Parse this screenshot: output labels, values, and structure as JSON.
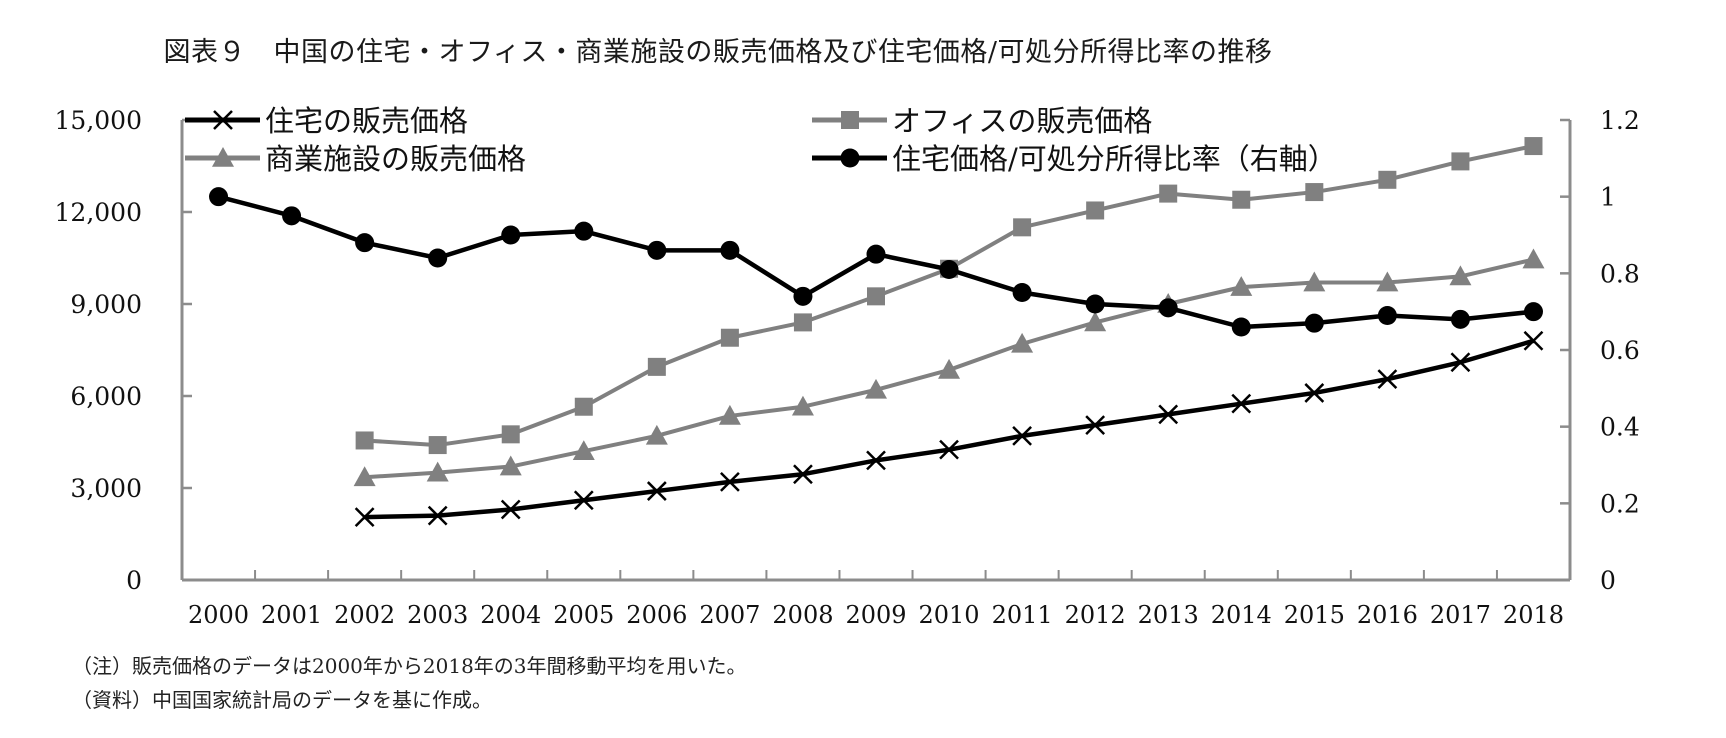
{
  "title": "図表９　中国の住宅・オフィス・商業施設の販売価格及び住宅価格/可処分所得比率の推移",
  "notes": {
    "note": "（注）販売価格のデータは2000年から2018年の3年間移動平均を用いた。",
    "source": "（資料）中国国家統計局のデータを基に作成。"
  },
  "colors": {
    "black_series": "#000000",
    "gray_series": "#808080",
    "axis": "#8c8c8c"
  },
  "legend": [
    {
      "label": "住宅の販売価格",
      "marker": "x-marker-icon",
      "color": "#000000"
    },
    {
      "label": "オフィスの販売価格",
      "marker": "square-marker-icon",
      "color": "#808080"
    },
    {
      "label": "商業施設の販売価格",
      "marker": "triangle-marker-icon",
      "color": "#808080"
    },
    {
      "label": "住宅価格/可処分所得比率（右軸）",
      "marker": "circle-marker-icon",
      "color": "#000000"
    }
  ],
  "axes": {
    "left_ticks": [
      "0",
      "3,000",
      "6,000",
      "9,000",
      "12,000",
      "15,000"
    ],
    "right_ticks": [
      "0",
      "0.2",
      "0.4",
      "0.6",
      "0.8",
      "1",
      "1.2"
    ],
    "x_ticks": [
      "2000",
      "2001",
      "2002",
      "2003",
      "2004",
      "2005",
      "2006",
      "2007",
      "2008",
      "2009",
      "2010",
      "2011",
      "2012",
      "2013",
      "2014",
      "2015",
      "2016",
      "2017",
      "2018"
    ]
  },
  "chart_data": {
    "type": "line",
    "title": "図表９　中国の住宅・オフィス・商業施設の販売価格及び住宅価格/可処分所得比率の推移",
    "xlabel": "",
    "ylabel": "",
    "ylabel_right": "",
    "categories": [
      "2000",
      "2001",
      "2002",
      "2003",
      "2004",
      "2005",
      "2006",
      "2007",
      "2008",
      "2009",
      "2010",
      "2011",
      "2012",
      "2013",
      "2014",
      "2015",
      "2016",
      "2017",
      "2018"
    ],
    "ylim": [
      0,
      15000
    ],
    "ylim_right": [
      0,
      1.2
    ],
    "grid": false,
    "legend_position": "top, inside plot, two columns",
    "series": [
      {
        "name": "住宅の販売価格",
        "axis": "left",
        "marker": "x",
        "color": "#000000",
        "values": [
          null,
          null,
          2050,
          2100,
          2300,
          2600,
          2900,
          3200,
          3450,
          3900,
          4250,
          4700,
          5050,
          5400,
          5750,
          6100,
          6550,
          7100,
          7800
        ]
      },
      {
        "name": "オフィスの販売価格",
        "axis": "left",
        "marker": "square",
        "color": "#808080",
        "values": [
          null,
          null,
          4550,
          4400,
          4750,
          5650,
          6950,
          7900,
          8400,
          9250,
          10150,
          11500,
          12050,
          12600,
          12400,
          12650,
          13050,
          13650,
          14150
        ]
      },
      {
        "name": "商業施設の販売価格",
        "axis": "left",
        "marker": "triangle",
        "color": "#808080",
        "values": [
          null,
          null,
          3350,
          3500,
          3700,
          4200,
          4700,
          5350,
          5650,
          6200,
          6850,
          7700,
          8400,
          9000,
          9550,
          9700,
          9700,
          9900,
          10450
        ]
      },
      {
        "name": "住宅価格/可処分所得比率（右軸）",
        "axis": "right",
        "marker": "circle",
        "color": "#000000",
        "values": [
          1.0,
          0.95,
          0.88,
          0.84,
          0.9,
          0.91,
          0.86,
          0.86,
          0.74,
          0.85,
          0.81,
          0.75,
          0.72,
          0.71,
          0.66,
          0.67,
          0.69,
          0.68,
          0.7
        ]
      }
    ],
    "annotations": [
      "（注）販売価格のデータは2000年から2018年の3年間移動平均を用いた。",
      "（資料）中国国家統計局のデータを基に作成。"
    ]
  }
}
